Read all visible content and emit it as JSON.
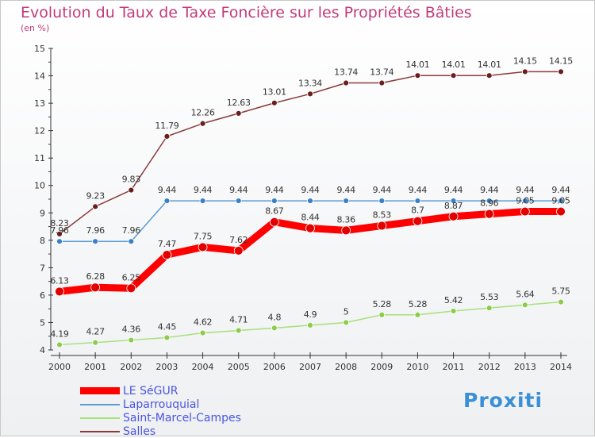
{
  "page": {
    "title": "Evolution du Taux de Taxe Foncière sur les Propriétés Bâties",
    "subtitle": "(en %)",
    "logo": "Proxiti"
  },
  "chart_data": {
    "type": "line",
    "title": "Evolution du Taux de Taxe Foncière sur les Propriétés Bâties",
    "ylabel": "(en %)",
    "x": [
      "2000",
      "2001",
      "2002",
      "2003",
      "2004",
      "2005",
      "2006",
      "2007",
      "2008",
      "2009",
      "2010",
      "2011",
      "2012",
      "2013",
      "2014"
    ],
    "ylim": [
      4,
      15
    ],
    "yticks": [
      "4",
      "5",
      "6",
      "7",
      "8",
      "9",
      "10",
      "11",
      "12",
      "13",
      "14",
      "15"
    ],
    "grid": false,
    "legend_position": "bottom-left",
    "series": [
      {
        "name": "LE SéGUR",
        "color": "#ff0000",
        "marker": "#e00000",
        "width": 9,
        "values": [
          6.13,
          6.28,
          6.25,
          7.47,
          7.75,
          7.62,
          8.67,
          8.44,
          8.36,
          8.53,
          8.7,
          8.87,
          8.96,
          9.05,
          9.05
        ],
        "labels": [
          "6.13",
          "6.28",
          "6.25",
          "7.47",
          "7.75",
          "7.62",
          "8.67",
          "8.44",
          "8.36",
          "8.53",
          "8.7",
          "8.87",
          "8.96",
          "9.05",
          "9.05"
        ]
      },
      {
        "name": "Laparrouquial",
        "color": "#5b9bd5",
        "marker": "#3a80c8",
        "width": 1.5,
        "values": [
          7.96,
          7.96,
          7.96,
          9.44,
          9.44,
          9.44,
          9.44,
          9.44,
          9.44,
          9.44,
          9.44,
          9.44,
          9.44,
          9.44,
          9.44
        ],
        "labels": [
          "7.96",
          "7.96",
          "7.96",
          "9.44",
          "9.44",
          "9.44",
          "9.44",
          "9.44",
          "9.44",
          "9.44",
          "9.44",
          "9.44",
          "9.44",
          "9.44",
          "9.44"
        ]
      },
      {
        "name": "Saint-Marcel-Campes",
        "color": "#a8e07a",
        "marker": "#8ccc4a",
        "width": 1.5,
        "values": [
          4.19,
          4.27,
          4.36,
          4.45,
          4.62,
          4.71,
          4.8,
          4.9,
          5,
          5.28,
          5.28,
          5.42,
          5.53,
          5.64,
          5.75
        ],
        "labels": [
          "4.19",
          "4.27",
          "4.36",
          "4.45",
          "4.62",
          "4.71",
          "4.8",
          "4.9",
          "5",
          "5.28",
          "5.28",
          "5.42",
          "5.53",
          "5.64",
          "5.75"
        ]
      },
      {
        "name": "Salles",
        "color": "#8b3a3a",
        "marker": "#6a1f1f",
        "width": 1.5,
        "values": [
          8.23,
          9.23,
          9.83,
          11.79,
          12.26,
          12.63,
          13.01,
          13.34,
          13.74,
          13.74,
          14.01,
          14.01,
          14.01,
          14.15,
          14.15
        ],
        "labels": [
          "8.23",
          "9.23",
          "9.83",
          "11.79",
          "12.26",
          "12.63",
          "13.01",
          "13.34",
          "13.74",
          "13.74",
          "14.01",
          "14.01",
          "14.01",
          "14.15",
          "14.15"
        ]
      }
    ]
  }
}
